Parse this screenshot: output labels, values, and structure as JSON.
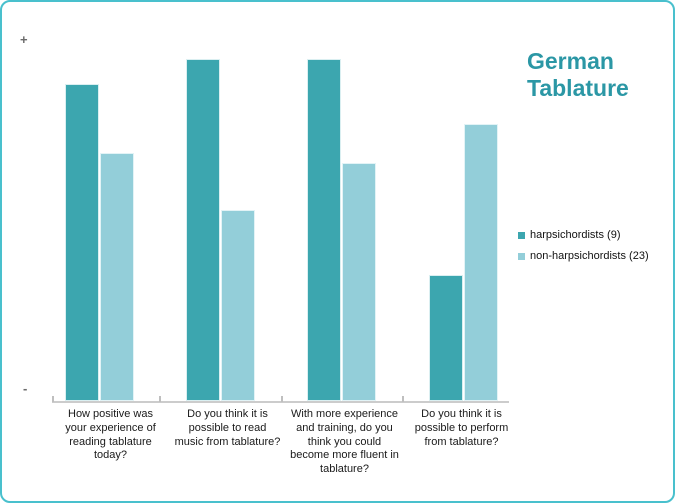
{
  "title": "German Tablature",
  "colors": {
    "frame_border": "#49C0CD",
    "title_text": "#2B97A5",
    "axis_line": "#CCCCCC",
    "axis_signs": "#6B6B6B",
    "series_dark": "#3CA6AF",
    "series_light": "#93CED9"
  },
  "chart_data": {
    "type": "bar",
    "title": "German Tablature",
    "categories": [
      "How positive was your experience of reading tablature today?",
      "Do you think it is possible to read music from tablature?",
      "With more experience and training, do you think you could become more fluent in tablature?",
      "Do you think it is possible to perform from tablature?"
    ],
    "series": [
      {
        "name": "harpsichordists (9)",
        "color": "#3CA6AF",
        "values": [
          88,
          95,
          95,
          35
        ]
      },
      {
        "name": "non-harpsichordists (23)",
        "color": "#93CED9",
        "values": [
          69,
          53,
          66,
          77
        ]
      }
    ],
    "xlabel": "",
    "ylabel": "",
    "y_axis_labels": {
      "top": "+",
      "bottom": "-"
    },
    "ylim": [
      0,
      100
    ],
    "grid": false,
    "legend_position": "right",
    "value_note": "y-axis unlabeled; values are relative heights (0-100) between '-' and '+'"
  }
}
